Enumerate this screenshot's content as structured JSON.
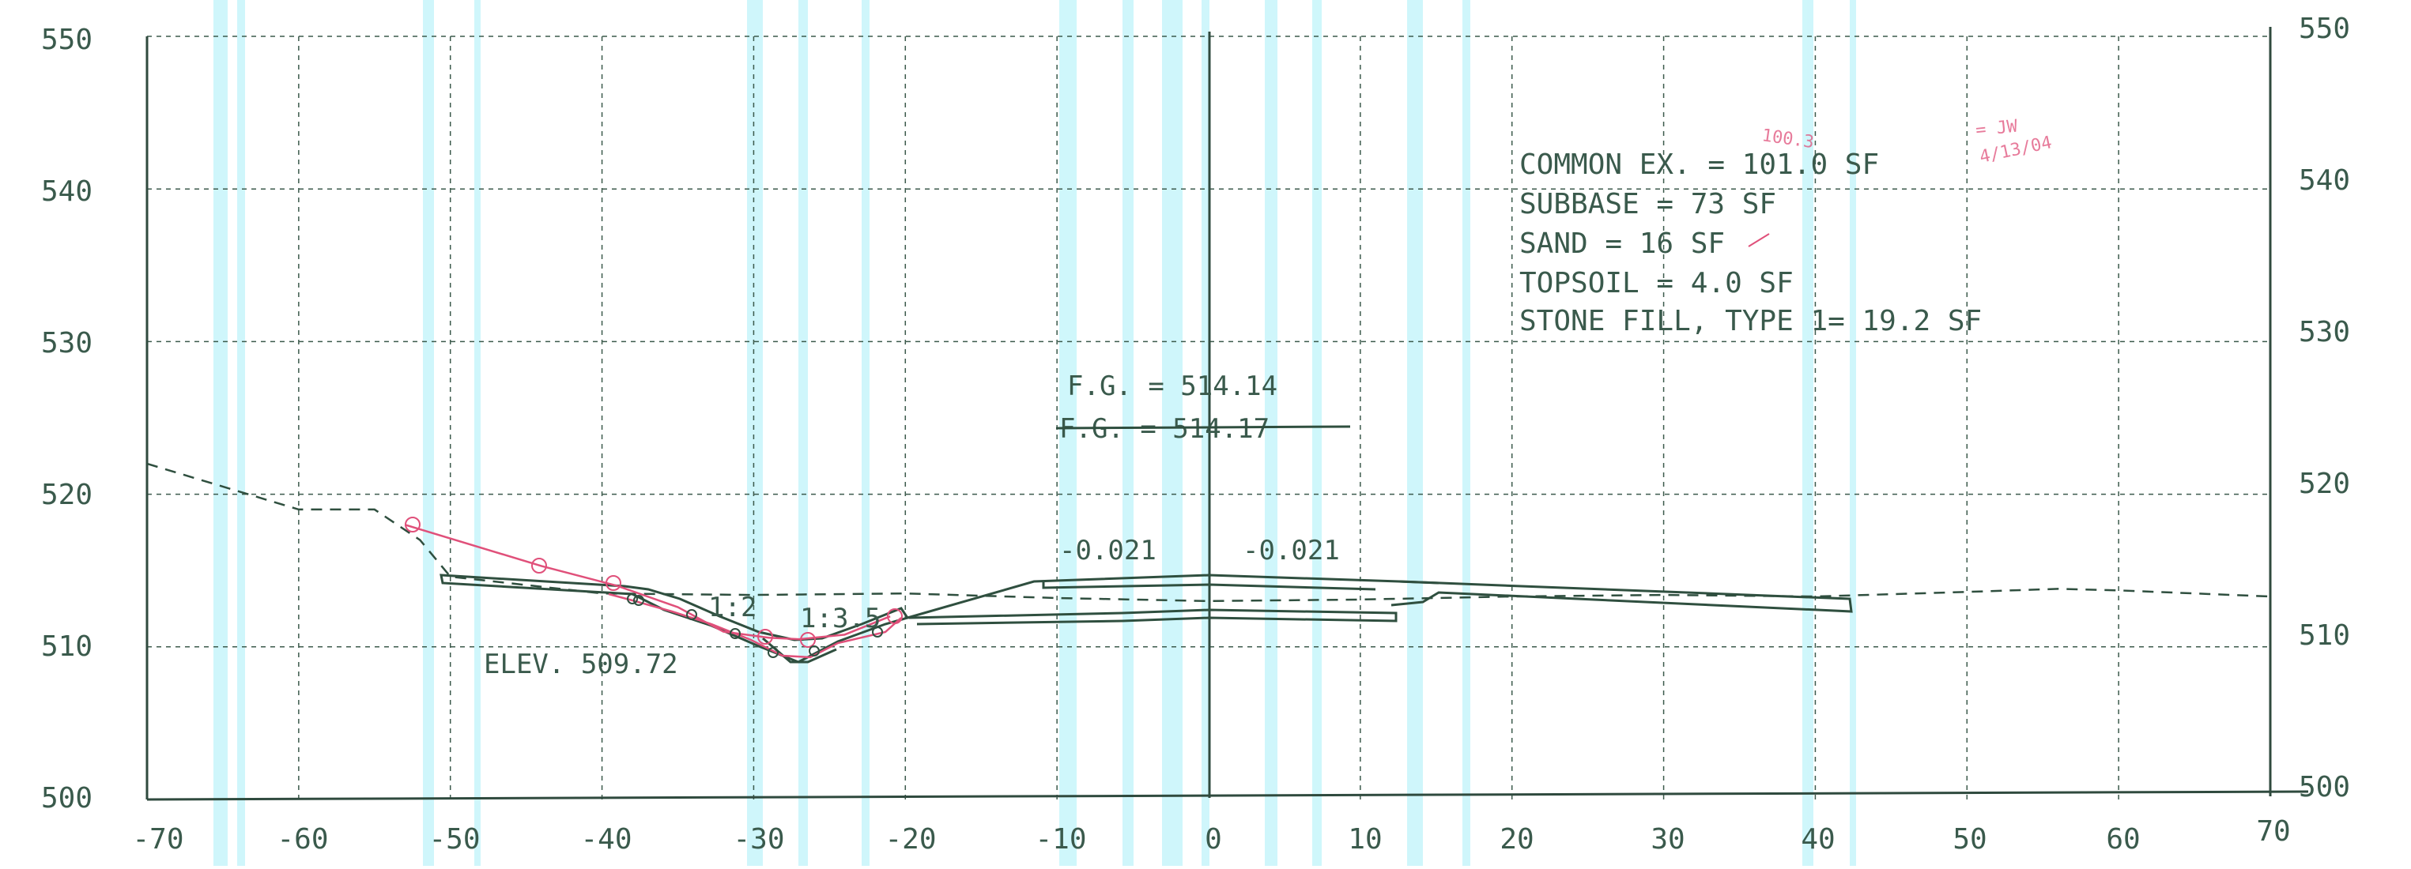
{
  "drawing": {
    "x_ticks": [
      -70,
      -60,
      -50,
      -40,
      -30,
      -20,
      -10,
      0,
      10,
      20,
      30,
      40,
      50,
      60,
      70
    ],
    "y_ticks": [
      500,
      510,
      520,
      530,
      540,
      550
    ],
    "quantities": [
      "COMMON EX. = 101.0 SF",
      "SUBBASE = 73 SF",
      "SAND = 16 SF",
      "TOPSOIL = 4.0 SF",
      "STONE FILL, TYPE 1= 19.2 SF"
    ],
    "finish_grade_current": "F.G. = 514.14",
    "finish_grade_struck": "F.G. = 514.17",
    "slope_left": "-0.021",
    "slope_right": "-0.021",
    "side_slope_1": "1:2",
    "side_slope_2": "1:3.5",
    "elevation_label": "ELEV. 509.72",
    "handwritten_note_1": "100.3",
    "handwritten_note_2": "= JW",
    "handwritten_note_3": "4/13/04",
    "colors": {
      "grid_lines": "#2f4a3e",
      "dashed_grid": "#3c5a4c",
      "cyan_scan_bands": "#a8f0f8",
      "profile_ink": "#2f4f3f",
      "red_markup": "#e0507a"
    }
  },
  "chart_data": {
    "type": "line",
    "xlim": [
      -70,
      70
    ],
    "ylim": [
      500,
      550
    ],
    "existing_ground": {
      "x": [
        -70,
        -60,
        -55,
        -52,
        -50,
        -40,
        -30,
        -20,
        -10,
        0,
        10,
        20,
        30,
        40,
        50,
        56,
        60,
        70
      ],
      "y": [
        522,
        519,
        519,
        517,
        514.6,
        513.5,
        513.4,
        513.5,
        513.2,
        513.0,
        513.1,
        513.3,
        513.4,
        513.3,
        513.6,
        513.8,
        513.7,
        513.3
      ]
    },
    "proposed_section": {
      "x": [
        -51,
        -38,
        -35,
        -32,
        -29,
        -26.5,
        -21,
        -12,
        0,
        11,
        42
      ],
      "y": [
        514.5,
        513.5,
        512.8,
        510.8,
        509.4,
        509.4,
        511.7,
        514.1,
        514.3,
        514.1,
        513.2
      ]
    },
    "red_markup_line": {
      "x": [
        -53,
        -44,
        -39,
        -35,
        -32,
        -29,
        -27,
        -24,
        -21
      ],
      "y": [
        518,
        515.3,
        514,
        512.6,
        511,
        510.6,
        510.5,
        510.8,
        512
      ]
    }
  }
}
